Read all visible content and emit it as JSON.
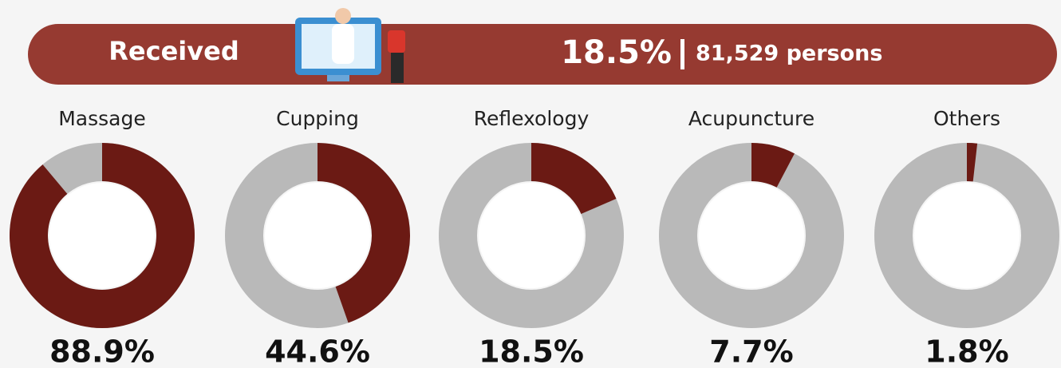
{
  "header": {
    "label": "Received",
    "percent": "18.5%",
    "persons": "81,529 persons"
  },
  "chart_data": [
    {
      "type": "donut",
      "title": "Massage",
      "values": [
        88.9
      ],
      "value_labels": [
        "88.9%"
      ],
      "color": "#6b1a14",
      "track_color": "#b9b9b9"
    },
    {
      "type": "donut",
      "title": "Cupping",
      "values": [
        44.6
      ],
      "value_labels": [
        "44.6%"
      ],
      "color": "#6b1a14",
      "track_color": "#b9b9b9"
    },
    {
      "type": "donut",
      "title": "Reflexology",
      "values": [
        18.5
      ],
      "value_labels": [
        "18.5%"
      ],
      "color": "#6b1a14",
      "track_color": "#b9b9b9"
    },
    {
      "type": "donut",
      "title": "Acupuncture",
      "values": [
        7.7
      ],
      "value_labels": [
        "7.7%"
      ],
      "color": "#6b1a14",
      "track_color": "#b9b9b9"
    },
    {
      "type": "donut",
      "title": "Others",
      "values": [
        1.8
      ],
      "value_labels": [
        "1.8%"
      ],
      "color": "#6b1a14",
      "track_color": "#b9b9b9"
    }
  ]
}
